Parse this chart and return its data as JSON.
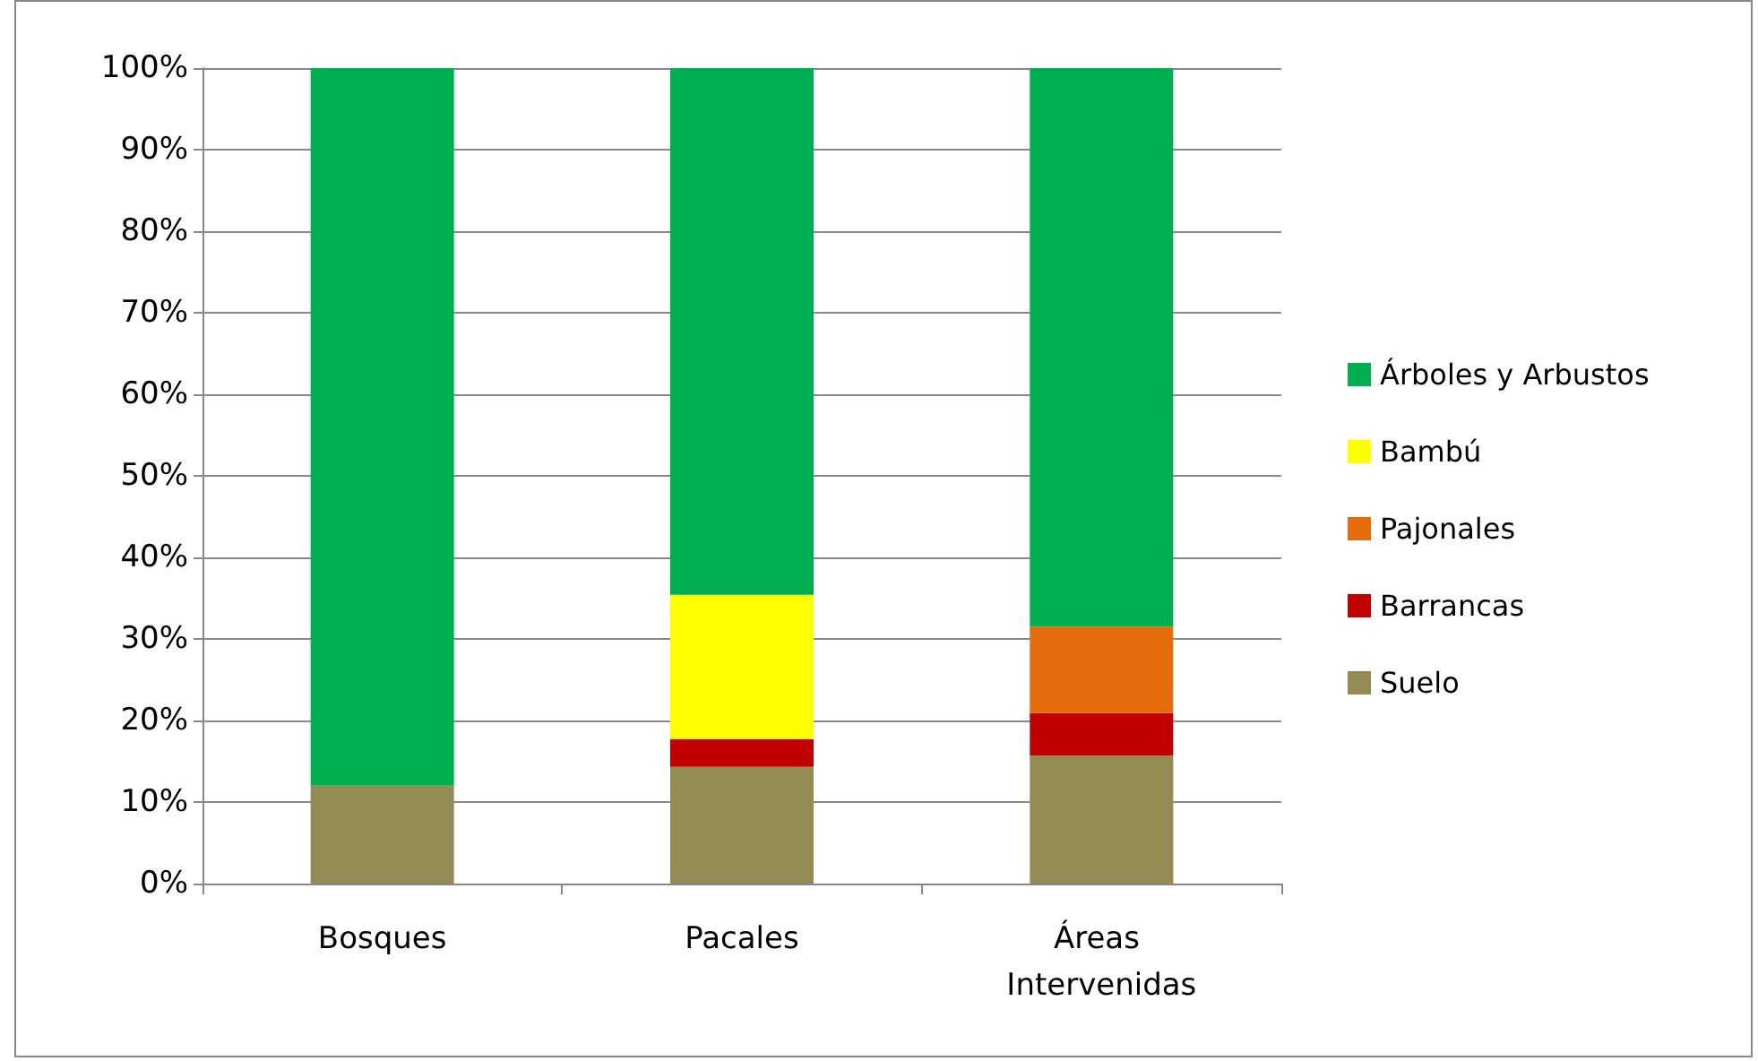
{
  "chart_data": {
    "type": "bar",
    "stacked": true,
    "categories": [
      "Bosques",
      "Pacales",
      "Áreas Intervenidas"
    ],
    "series": [
      {
        "name": "Suelo",
        "color": "#948a54",
        "values": [
          12,
          14.3,
          15.7
        ]
      },
      {
        "name": "Barrancas",
        "color": "#c00000",
        "values": [
          0,
          3.4,
          5.2
        ]
      },
      {
        "name": "Pajonales",
        "color": "#e46c0a",
        "values": [
          0,
          0,
          10.6
        ]
      },
      {
        "name": "Bambú",
        "color": "#ffff00",
        "values": [
          0,
          17.7,
          0
        ]
      },
      {
        "name": "Árboles y Arbustos",
        "color": "#00b050",
        "values": [
          88,
          64.6,
          68.5
        ]
      }
    ],
    "ylim": [
      0,
      100
    ],
    "yticks": [
      {
        "value": 0,
        "label": "0%"
      },
      {
        "value": 10,
        "label": "10%"
      },
      {
        "value": 20,
        "label": "20%"
      },
      {
        "value": 30,
        "label": "30%"
      },
      {
        "value": 40,
        "label": "40%"
      },
      {
        "value": 50,
        "label": "50%"
      },
      {
        "value": 60,
        "label": "60%"
      },
      {
        "value": 70,
        "label": "70%"
      },
      {
        "value": 80,
        "label": "80%"
      },
      {
        "value": 90,
        "label": "90%"
      },
      {
        "value": 100,
        "label": "100%"
      }
    ],
    "grid": "y",
    "legend": "right"
  }
}
